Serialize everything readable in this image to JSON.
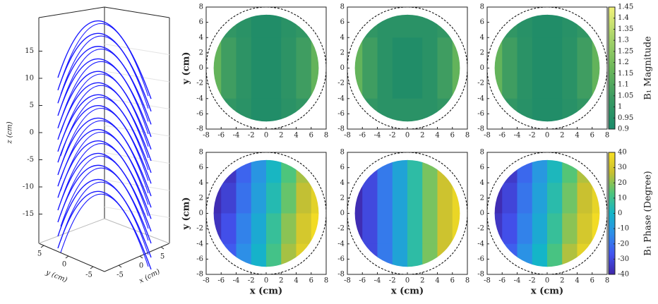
{
  "chart_data": [
    {
      "type": "line3d",
      "zlabel": "z (cm)",
      "ylabel": "y (cm)",
      "xlabel": "x (cm)",
      "zlim": [
        -20,
        23
      ],
      "zticks": [
        -15,
        -10,
        -5,
        0,
        5,
        10,
        15
      ],
      "yticks": [
        5,
        0,
        -5
      ],
      "xticks": [
        -5,
        0,
        5
      ],
      "color": "#1a1aff",
      "values": [
        20.5,
        18.2,
        15.8,
        13.5,
        11.2,
        9.1,
        6.9,
        4.9,
        2.6,
        0.5,
        -1.6,
        -3.9,
        -6.1,
        -8.7,
        -10.9
      ]
    },
    {
      "type": "contour",
      "ylabel": "y (cm)",
      "xticks": [
        -8,
        -6,
        -4,
        -2,
        0,
        2,
        4,
        6,
        8
      ],
      "yticks": [
        -8,
        -6,
        -4,
        -2,
        0,
        2,
        4,
        6,
        8
      ],
      "xlim": [
        -8,
        8
      ],
      "ylim": [
        -8,
        8
      ],
      "radius": 7,
      "boundary_radius": 8,
      "clim": [
        0.9,
        1.45
      ],
      "colormap": [
        "#1a8a6a",
        "#3a9a62",
        "#6cb85a",
        "#a8d46a",
        "#f2f27a"
      ],
      "x": [
        -7,
        -5,
        -3,
        -1,
        1,
        3,
        5,
        7
      ],
      "y": [
        6,
        2,
        -2,
        -6
      ],
      "z": [
        [
          1.05,
          1.0,
          0.97,
          0.93,
          0.93,
          0.97,
          1.0,
          1.05
        ],
        [
          1.15,
          1.05,
          0.98,
          0.93,
          0.93,
          0.98,
          1.05,
          1.15
        ],
        [
          1.15,
          1.05,
          0.98,
          0.93,
          0.93,
          0.98,
          1.05,
          1.15
        ],
        [
          1.05,
          1.0,
          0.97,
          0.93,
          0.93,
          0.97,
          1.0,
          1.05
        ]
      ]
    },
    {
      "type": "contour",
      "xticks": [
        -8,
        -6,
        -4,
        -2,
        0,
        2,
        4,
        6,
        8
      ],
      "yticks": [
        -8,
        -6,
        -4,
        -2,
        0,
        2,
        4,
        6,
        8
      ],
      "xlim": [
        -8,
        8
      ],
      "ylim": [
        -8,
        8
      ],
      "radius": 7,
      "boundary_radius": 8,
      "clim": [
        0.9,
        1.45
      ],
      "colormap": [
        "#1a8a6a",
        "#3a9a62",
        "#6cb85a",
        "#a8d46a",
        "#f2f27a"
      ],
      "x": [
        -7,
        -5,
        -3,
        -1,
        1,
        3,
        5,
        7
      ],
      "y": [
        6,
        2,
        -2,
        -6
      ],
      "z": [
        [
          1.05,
          1.0,
          0.97,
          0.97,
          0.97,
          0.97,
          1.0,
          1.05
        ],
        [
          1.15,
          1.05,
          0.97,
          0.93,
          0.93,
          0.97,
          1.05,
          1.15
        ],
        [
          1.15,
          1.05,
          0.97,
          0.93,
          0.93,
          0.97,
          1.05,
          1.15
        ],
        [
          1.05,
          1.0,
          0.97,
          0.97,
          0.97,
          0.97,
          1.0,
          1.05
        ]
      ]
    },
    {
      "type": "contour",
      "xticks": [
        -8,
        -6,
        -4,
        -2,
        0,
        2,
        4,
        6,
        8
      ],
      "yticks": [
        -8,
        -6,
        -4,
        -2,
        0,
        2,
        4,
        6,
        8
      ],
      "xlim": [
        -8,
        8
      ],
      "ylim": [
        -8,
        8
      ],
      "radius": 7,
      "boundary_radius": 8,
      "clim": [
        0.9,
        1.45
      ],
      "colormap": [
        "#1a8a6a",
        "#3a9a62",
        "#6cb85a",
        "#a8d46a",
        "#f2f27a"
      ],
      "x": [
        -7,
        -5,
        -3,
        -1,
        1,
        3,
        5,
        7
      ],
      "y": [
        6,
        2,
        -2,
        -6
      ],
      "z": [
        [
          1.05,
          1.0,
          0.96,
          0.93,
          0.93,
          0.96,
          1.0,
          1.05
        ],
        [
          1.15,
          1.05,
          0.97,
          0.93,
          0.93,
          0.97,
          1.05,
          1.15
        ],
        [
          1.15,
          1.05,
          0.97,
          0.93,
          0.93,
          0.97,
          1.05,
          1.15
        ],
        [
          1.05,
          1.0,
          0.96,
          0.93,
          0.93,
          0.96,
          1.0,
          1.05
        ]
      ],
      "colorbar": {
        "label": "B₁ Magnitude",
        "ticks": [
          0.9,
          0.95,
          1,
          1.05,
          1.1,
          1.15,
          1.2,
          1.25,
          1.3,
          1.35,
          1.4,
          1.45
        ]
      }
    },
    {
      "type": "contour",
      "ylabel": "y (cm)",
      "xlabel": "x (cm)",
      "xticks": [
        -8,
        -6,
        -4,
        -2,
        0,
        2,
        4,
        6,
        8
      ],
      "yticks": [
        -8,
        -6,
        -4,
        -2,
        0,
        2,
        4,
        6,
        8
      ],
      "xlim": [
        -8,
        8
      ],
      "ylim": [
        -8,
        8
      ],
      "radius": 7,
      "boundary_radius": 8,
      "clim": [
        -40,
        40
      ],
      "colormap": [
        "#3e26a8",
        "#4254f0",
        "#2e8ee8",
        "#14b5c8",
        "#4ec57a",
        "#c8c030",
        "#f9e022"
      ],
      "x": [
        -7,
        -5,
        -3,
        -1,
        1,
        3,
        5,
        7
      ],
      "y": [
        6,
        2,
        -2,
        -6
      ],
      "z": [
        [
          -40,
          -35,
          -23,
          -11,
          1,
          13,
          23,
          31
        ],
        [
          -38,
          -32,
          -20,
          -8,
          4,
          16,
          26,
          34
        ],
        [
          -36,
          -28,
          -16,
          -4,
          8,
          20,
          30,
          38
        ],
        [
          -33,
          -25,
          -13,
          -1,
          11,
          23,
          33,
          40
        ]
      ]
    },
    {
      "type": "contour",
      "xlabel": "x (cm)",
      "xticks": [
        -8,
        -6,
        -4,
        -2,
        0,
        2,
        4,
        6,
        8
      ],
      "yticks": [
        -8,
        -6,
        -4,
        -2,
        0,
        2,
        4,
        6,
        8
      ],
      "xlim": [
        -8,
        8
      ],
      "ylim": [
        -8,
        8
      ],
      "radius": 7,
      "boundary_radius": 8,
      "clim": [
        -40,
        40
      ],
      "colormap": [
        "#3e26a8",
        "#4254f0",
        "#2e8ee8",
        "#14b5c8",
        "#4ec57a",
        "#c8c030",
        "#f9e022"
      ],
      "x": [
        -7,
        -5,
        -3,
        -1,
        1,
        3,
        5,
        7
      ],
      "y": [
        6,
        2,
        -2,
        -6
      ],
      "z": [
        [
          -38,
          -30,
          -18,
          -6,
          6,
          18,
          28,
          36
        ],
        [
          -38,
          -30,
          -18,
          -6,
          6,
          18,
          28,
          36
        ],
        [
          -38,
          -30,
          -18,
          -6,
          6,
          18,
          28,
          36
        ],
        [
          -38,
          -30,
          -18,
          -6,
          6,
          18,
          28,
          36
        ]
      ]
    },
    {
      "type": "contour",
      "xlabel": "x (cm)",
      "xticks": [
        -8,
        -6,
        -4,
        -2,
        0,
        2,
        4,
        6,
        8
      ],
      "yticks": [
        -8,
        -6,
        -4,
        -2,
        0,
        2,
        4,
        6,
        8
      ],
      "xlim": [
        -8,
        8
      ],
      "ylim": [
        -8,
        8
      ],
      "radius": 7,
      "boundary_radius": 8,
      "clim": [
        -40,
        40
      ],
      "colormap": [
        "#3e26a8",
        "#4254f0",
        "#2e8ee8",
        "#14b5c8",
        "#4ec57a",
        "#c8c030",
        "#f9e022"
      ],
      "x": [
        -7,
        -5,
        -3,
        -1,
        1,
        3,
        5,
        7
      ],
      "y": [
        6,
        2,
        -2,
        -6
      ],
      "z": [
        [
          -40,
          -34,
          -22,
          -10,
          2,
          14,
          24,
          32
        ],
        [
          -38,
          -31,
          -19,
          -7,
          5,
          17,
          27,
          35
        ],
        [
          -35,
          -28,
          -16,
          -4,
          8,
          20,
          30,
          38
        ],
        [
          -32,
          -24,
          -12,
          0,
          12,
          24,
          34,
          40
        ]
      ],
      "colorbar": {
        "label": "B₁ Phase (Degree)",
        "ticks": [
          -40,
          -30,
          -20,
          -10,
          0,
          10,
          20,
          30,
          40
        ]
      }
    }
  ]
}
